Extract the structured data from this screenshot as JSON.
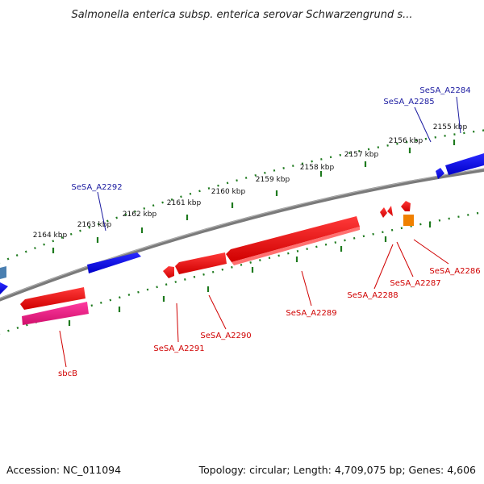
{
  "title": "Salmonella enterica subsp. enterica serovar Schwarzengrund s...",
  "footer": {
    "accession": "Accession: NC_011094",
    "summary": "Topology: circular; Length: 4,709,075 bp; Genes: 4,606"
  },
  "scale_labels": [
    "2155 kbp",
    "2156 kbp",
    "2157 kbp",
    "2158 kbp",
    "2159 kbp",
    "2160 kbp",
    "2161 kbp",
    "2162 kbp",
    "2163 kbp",
    "2164 kbp"
  ],
  "colors": {
    "backbone": "#7a7a7a",
    "forward_gene": "#1010e0",
    "reverse_gene": "#e00000",
    "sbcB_gene": "#e0157f",
    "small_orange_gene": "#f08000",
    "edge_gene_light": "#4a7fb0",
    "tick": "#1e7a1e",
    "forward_label": "#1a1aa0",
    "reverse_label": "#d00000"
  },
  "genes": {
    "forward_strand": [
      "SeSA_A2284",
      "SeSA_A2285",
      "SeSA_A2292"
    ],
    "reverse_strand": [
      "SeSA_A2286",
      "SeSA_A2287",
      "SeSA_A2288",
      "SeSA_A2289",
      "SeSA_A2290",
      "SeSA_A2291",
      "sbcB"
    ]
  }
}
